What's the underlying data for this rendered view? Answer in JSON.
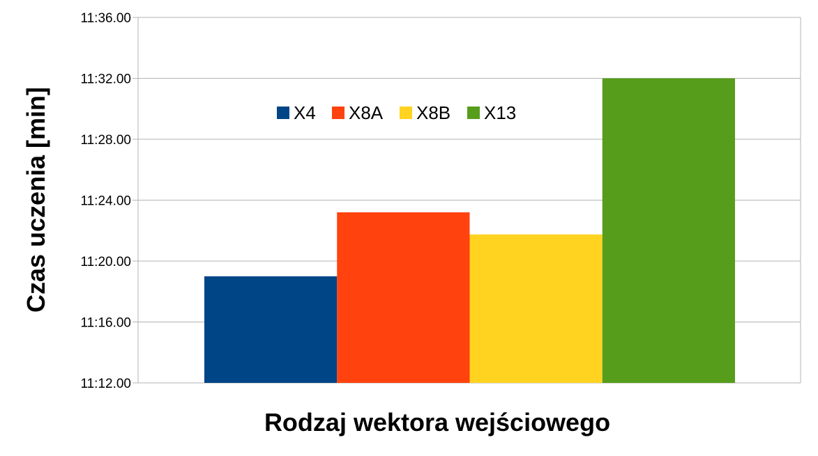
{
  "chart_data": {
    "type": "bar",
    "title": "",
    "xlabel": "Rodzaj wektora wejściowego",
    "ylabel": "Czas uczenia [min]",
    "ylim": [
      672,
      696
    ],
    "yticks": [
      {
        "value": 672,
        "label": "11:12.00"
      },
      {
        "value": 676,
        "label": "11:16.00"
      },
      {
        "value": 680,
        "label": "11:20.00"
      },
      {
        "value": 684,
        "label": "11:24.00"
      },
      {
        "value": 688,
        "label": "11:28.00"
      },
      {
        "value": 692,
        "label": "11:32.00"
      },
      {
        "value": 696,
        "label": "11:36.00"
      }
    ],
    "grid": true,
    "legend_position": "top-center",
    "series": [
      {
        "name": "X4",
        "value": 679.0,
        "color": "#004586"
      },
      {
        "name": "X8A",
        "value": 683.2,
        "color": "#ff420e"
      },
      {
        "name": "X8B",
        "value": 681.75,
        "color": "#ffd320"
      },
      {
        "name": "X13",
        "value": 692.0,
        "color": "#579d1c"
      }
    ]
  }
}
